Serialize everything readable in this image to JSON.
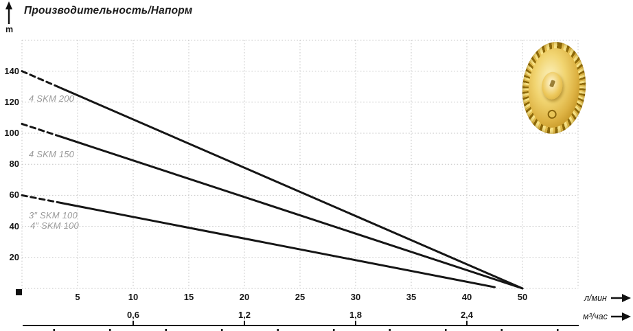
{
  "chart_data": {
    "type": "line",
    "title": "Производительность/Напорм",
    "grid": true,
    "legend_position": "none",
    "y_axis": {
      "unit": "m",
      "tick_labels": [
        "20",
        "40",
        "60",
        "80",
        "100",
        "120",
        "140"
      ],
      "range": [
        0,
        160
      ],
      "grid_step": 20
    },
    "x_axis_lmin": {
      "unit": "л/мин",
      "tick_labels": [
        "5",
        "10",
        "15",
        "20",
        "25",
        "30",
        "35",
        "40",
        "50"
      ]
    },
    "x_axis_m3h": {
      "unit": "м³/час",
      "tick_labels": [
        "0,6",
        "1,2",
        "1,8",
        "2,4"
      ]
    },
    "series": [
      {
        "name": "4 SKM 200",
        "points": [
          [
            0,
            140
          ],
          [
            50,
            0
          ]
        ],
        "dashed_until": 3.5
      },
      {
        "name": "4 SKM 150",
        "points": [
          [
            0,
            106
          ],
          [
            50,
            0
          ]
        ],
        "dashed_until": 3.5
      },
      {
        "name": "3″/4″ SKM 100",
        "points": [
          [
            0,
            60
          ],
          [
            45,
            0.8
          ]
        ],
        "dashed_until": 3.6
      }
    ],
    "curve_labels": [
      {
        "text": "4 SKM 200"
      },
      {
        "text": "4 SKM 150"
      },
      {
        "text": "3″ SKM 100"
      },
      {
        "text": "4″ SKM 100"
      }
    ],
    "colors": {
      "series": "#161616",
      "grid": "#c3c3c3",
      "curve_label": "#9b9b9b",
      "impeller_gold": "#d9af3c"
    }
  }
}
